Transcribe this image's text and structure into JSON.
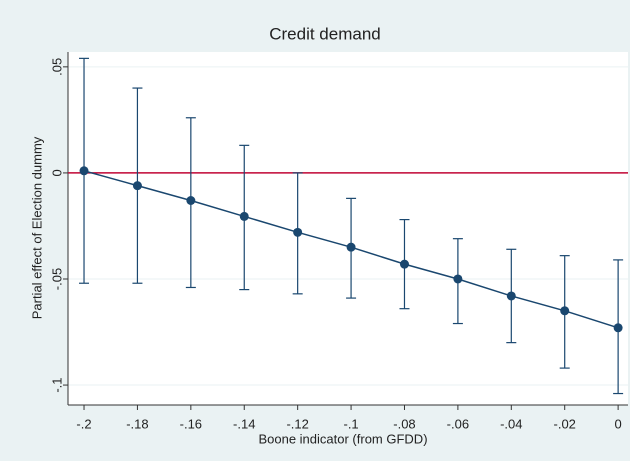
{
  "chart_data": {
    "type": "errorbar_line",
    "title": "Credit demand",
    "x_label": "Boone indicator (from GFDD)",
    "y_label": "Partial effect of Election dummy",
    "x": [
      -0.2,
      -0.18,
      -0.16,
      -0.14,
      -0.12,
      -0.1,
      -0.08,
      -0.06,
      -0.04,
      -0.02,
      0
    ],
    "series": [
      {
        "color": "#1a476f",
        "values": [
          0.001,
          -0.006,
          -0.013,
          -0.0205,
          -0.028,
          -0.035,
          -0.043,
          -0.05,
          -0.058,
          -0.065,
          -0.073
        ],
        "ci_lower": [
          -0.052,
          -0.052,
          -0.054,
          -0.055,
          -0.057,
          -0.059,
          -0.064,
          -0.071,
          -0.08,
          -0.092,
          -0.104
        ],
        "ci_upper": [
          0.054,
          0.04,
          0.026,
          0.013,
          0.0,
          -0.012,
          -0.022,
          -0.031,
          -0.036,
          -0.039,
          -0.041
        ]
      }
    ],
    "reference_line": {
      "value": 0,
      "color": "#c10534"
    },
    "xlim": [
      -0.206,
      0.0037
    ],
    "ylim": [
      -0.1094,
      0.057
    ],
    "xticks": [
      {
        "value": -0.2,
        "label": "-.2"
      },
      {
        "value": -0.18,
        "label": "-.18"
      },
      {
        "value": -0.16,
        "label": "-.16"
      },
      {
        "value": -0.14,
        "label": "-.14"
      },
      {
        "value": -0.12,
        "label": "-.12"
      },
      {
        "value": -0.1,
        "label": "-.1"
      },
      {
        "value": -0.08,
        "label": "-.08"
      },
      {
        "value": -0.06,
        "label": "-.06"
      },
      {
        "value": -0.04,
        "label": "-.04"
      },
      {
        "value": -0.02,
        "label": "-.02"
      },
      0
    ],
    "yticks": [
      {
        "value": -0.1,
        "label": "-.1"
      },
      {
        "value": -0.05,
        "label": "-.05"
      },
      0,
      {
        "value": 0.05,
        "label": ".05"
      }
    ],
    "grid": true
  }
}
